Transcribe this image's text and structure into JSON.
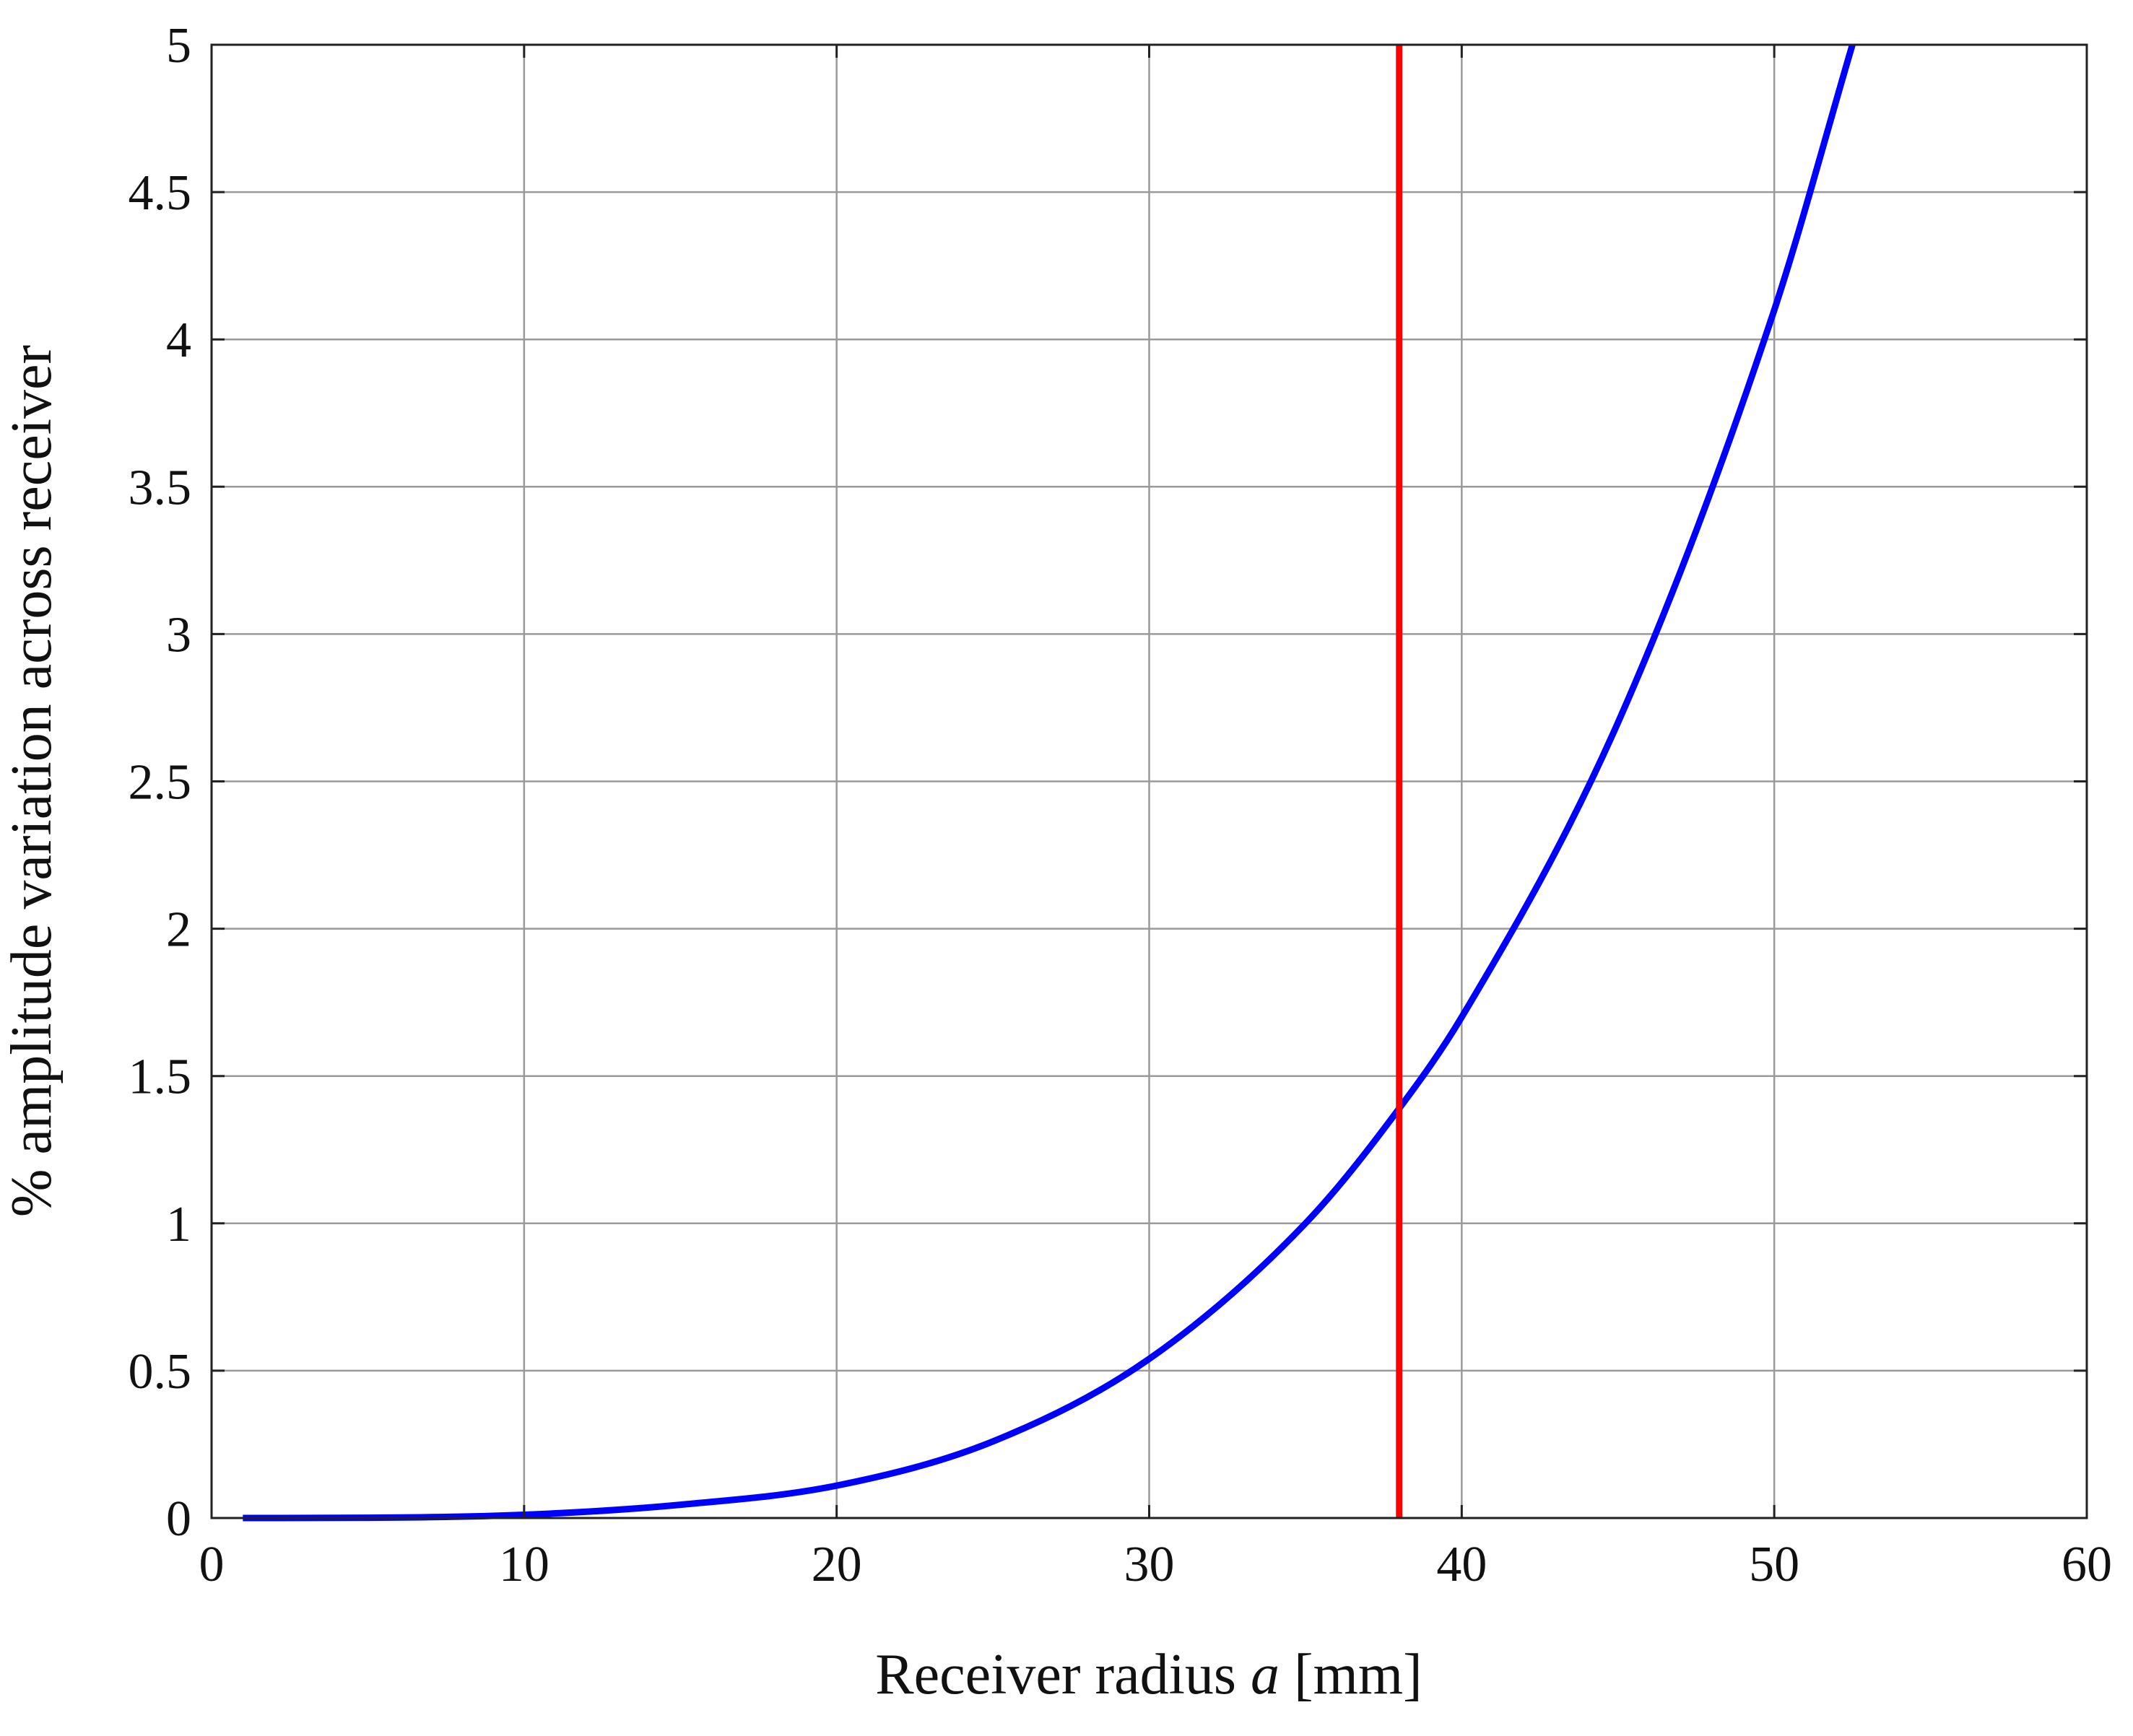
{
  "chart_data": {
    "type": "line",
    "title": "",
    "xlabel": "Receiver radius ",
    "xlabel_var": "a",
    "xlabel_unit": " [mm]",
    "ylabel": "% amplitude variation across receiver",
    "xlim": [
      0,
      60
    ],
    "ylim": [
      0,
      5
    ],
    "x_ticks": [
      0,
      10,
      20,
      30,
      40,
      50,
      60
    ],
    "y_ticks": [
      0,
      0.5,
      1,
      1.5,
      2,
      2.5,
      3,
      3.5,
      4,
      4.5,
      5
    ],
    "x_tick_labels": [
      "0",
      "10",
      "20",
      "30",
      "40",
      "50",
      "60"
    ],
    "y_tick_labels": [
      "0",
      "0.5",
      "1",
      "1.5",
      "2",
      "2.5",
      "3",
      "3.5",
      "4",
      "4.5",
      "5"
    ],
    "grid": true,
    "legend": "none",
    "series": [
      {
        "color": "#0000ff",
        "x": [
          1,
          5,
          10,
          15,
          20,
          25,
          30,
          35,
          38,
          40,
          45,
          50,
          52.5
        ],
        "y": [
          0,
          0.001,
          0.011,
          0.045,
          0.11,
          0.26,
          0.54,
          1.0,
          1.39,
          1.7,
          2.7,
          4.1,
          5.0
        ]
      }
    ],
    "vlines": [
      {
        "x": 38,
        "color": "#ff0000"
      }
    ]
  }
}
